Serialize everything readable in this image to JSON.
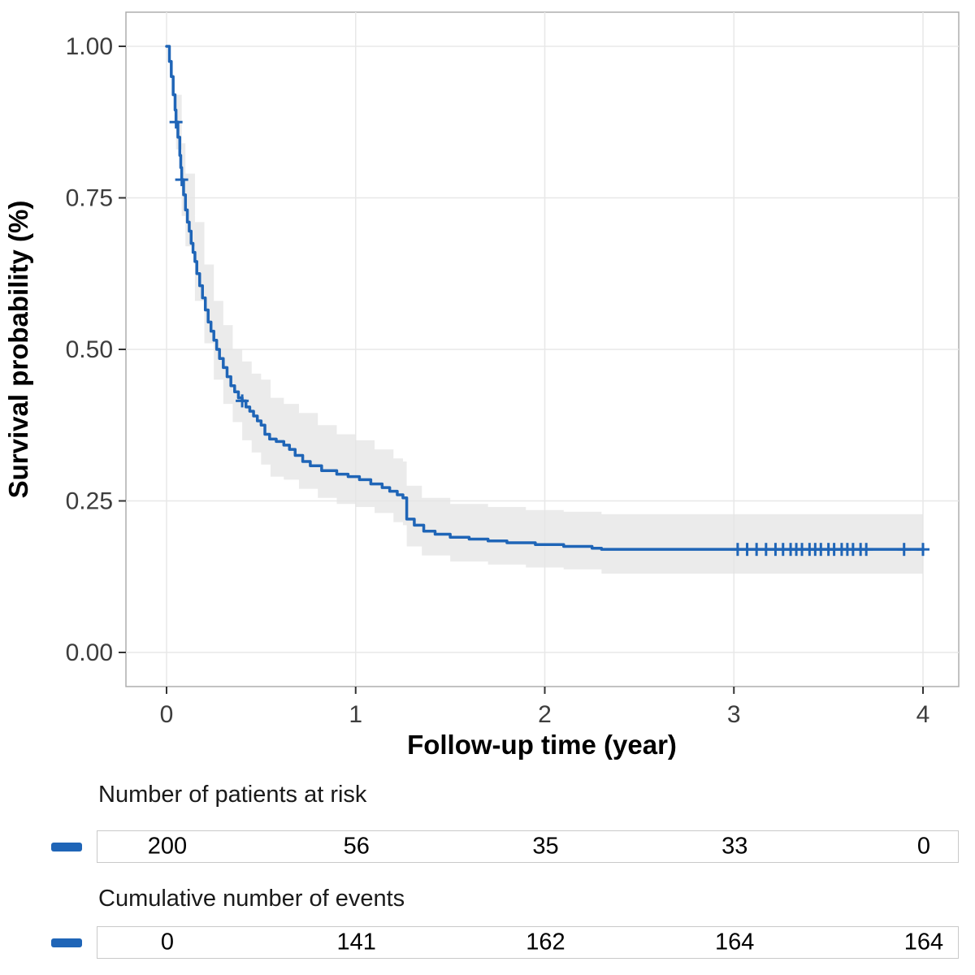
{
  "chart_data": {
    "type": "line",
    "subtype": "kaplan-meier-step",
    "title": "",
    "xlabel": "Follow-up time (year)",
    "ylabel": "Survival probability (%)",
    "xlim": [
      0,
      4
    ],
    "ylim": [
      0,
      1
    ],
    "grid": true,
    "x_ticks": [
      0,
      1,
      2,
      3,
      4
    ],
    "x_tick_labels": [
      "0",
      "1",
      "2",
      "3",
      "4"
    ],
    "y_ticks": [
      0,
      0.25,
      0.5,
      0.75,
      1
    ],
    "y_tick_labels": [
      "0.00",
      "0.25",
      "0.50",
      "0.75",
      "1.00"
    ],
    "line_color": "#1f65b7",
    "ci_color": "#e4e4e4",
    "curve": {
      "step": true,
      "points": [
        [
          0.0,
          1.0
        ],
        [
          0.015,
          0.975
        ],
        [
          0.025,
          0.95
        ],
        [
          0.035,
          0.92
        ],
        [
          0.045,
          0.895
        ],
        [
          0.05,
          0.875
        ],
        [
          0.06,
          0.85
        ],
        [
          0.07,
          0.82
        ],
        [
          0.075,
          0.8
        ],
        [
          0.08,
          0.78
        ],
        [
          0.09,
          0.755
        ],
        [
          0.1,
          0.73
        ],
        [
          0.11,
          0.71
        ],
        [
          0.12,
          0.695
        ],
        [
          0.13,
          0.675
        ],
        [
          0.14,
          0.66
        ],
        [
          0.15,
          0.645
        ],
        [
          0.16,
          0.625
        ],
        [
          0.175,
          0.605
        ],
        [
          0.19,
          0.585
        ],
        [
          0.205,
          0.565
        ],
        [
          0.22,
          0.545
        ],
        [
          0.235,
          0.53
        ],
        [
          0.25,
          0.515
        ],
        [
          0.265,
          0.5
        ],
        [
          0.28,
          0.485
        ],
        [
          0.3,
          0.47
        ],
        [
          0.32,
          0.455
        ],
        [
          0.34,
          0.44
        ],
        [
          0.36,
          0.43
        ],
        [
          0.38,
          0.42
        ],
        [
          0.4,
          0.415
        ],
        [
          0.42,
          0.405
        ],
        [
          0.44,
          0.398
        ],
        [
          0.46,
          0.39
        ],
        [
          0.48,
          0.382
        ],
        [
          0.5,
          0.375
        ],
        [
          0.52,
          0.36
        ],
        [
          0.545,
          0.352
        ],
        [
          0.58,
          0.348
        ],
        [
          0.62,
          0.342
        ],
        [
          0.65,
          0.335
        ],
        [
          0.68,
          0.325
        ],
        [
          0.72,
          0.315
        ],
        [
          0.76,
          0.308
        ],
        [
          0.82,
          0.3
        ],
        [
          0.9,
          0.294
        ],
        [
          0.96,
          0.29
        ],
        [
          1.02,
          0.285
        ],
        [
          1.08,
          0.278
        ],
        [
          1.14,
          0.272
        ],
        [
          1.18,
          0.266
        ],
        [
          1.22,
          0.26
        ],
        [
          1.25,
          0.255
        ],
        [
          1.27,
          0.22
        ],
        [
          1.31,
          0.21
        ],
        [
          1.36,
          0.2
        ],
        [
          1.42,
          0.195
        ],
        [
          1.5,
          0.19
        ],
        [
          1.6,
          0.187
        ],
        [
          1.7,
          0.184
        ],
        [
          1.8,
          0.181
        ],
        [
          1.95,
          0.178
        ],
        [
          2.1,
          0.175
        ],
        [
          2.25,
          0.172
        ],
        [
          2.3,
          0.17
        ],
        [
          4.0,
          0.17
        ]
      ]
    },
    "censor_marks": [
      [
        0.05,
        0.875
      ],
      [
        0.08,
        0.78
      ],
      [
        0.4,
        0.415
      ],
      [
        3.02,
        0.17
      ],
      [
        3.07,
        0.17
      ],
      [
        3.12,
        0.17
      ],
      [
        3.17,
        0.17
      ],
      [
        3.22,
        0.17
      ],
      [
        3.26,
        0.17
      ],
      [
        3.3,
        0.17
      ],
      [
        3.33,
        0.17
      ],
      [
        3.36,
        0.17
      ],
      [
        3.4,
        0.17
      ],
      [
        3.43,
        0.17
      ],
      [
        3.46,
        0.17
      ],
      [
        3.5,
        0.17
      ],
      [
        3.53,
        0.17
      ],
      [
        3.57,
        0.17
      ],
      [
        3.6,
        0.17
      ],
      [
        3.63,
        0.17
      ],
      [
        3.67,
        0.17
      ],
      [
        3.7,
        0.17
      ],
      [
        3.9,
        0.17
      ],
      [
        4.0,
        0.17
      ]
    ],
    "confidence_band": [
      [
        0.0,
        1.0,
        1.0
      ],
      [
        0.05,
        0.83,
        0.92
      ],
      [
        0.08,
        0.72,
        0.84
      ],
      [
        0.1,
        0.67,
        0.79
      ],
      [
        0.15,
        0.58,
        0.71
      ],
      [
        0.2,
        0.51,
        0.64
      ],
      [
        0.25,
        0.45,
        0.58
      ],
      [
        0.3,
        0.41,
        0.54
      ],
      [
        0.35,
        0.38,
        0.5
      ],
      [
        0.4,
        0.35,
        0.48
      ],
      [
        0.45,
        0.33,
        0.46
      ],
      [
        0.5,
        0.31,
        0.45
      ],
      [
        0.55,
        0.29,
        0.42
      ],
      [
        0.62,
        0.285,
        0.41
      ],
      [
        0.7,
        0.27,
        0.395
      ],
      [
        0.8,
        0.255,
        0.375
      ],
      [
        0.9,
        0.245,
        0.36
      ],
      [
        1.0,
        0.24,
        0.35
      ],
      [
        1.1,
        0.23,
        0.335
      ],
      [
        1.2,
        0.215,
        0.32
      ],
      [
        1.25,
        0.21,
        0.315
      ],
      [
        1.27,
        0.175,
        0.275
      ],
      [
        1.35,
        0.16,
        0.255
      ],
      [
        1.5,
        0.15,
        0.245
      ],
      [
        1.7,
        0.145,
        0.24
      ],
      [
        1.9,
        0.14,
        0.235
      ],
      [
        2.1,
        0.137,
        0.232
      ],
      [
        2.3,
        0.13,
        0.228
      ],
      [
        4.0,
        0.13,
        0.228
      ]
    ],
    "risk_table": {
      "title": "Number of patients at risk",
      "times": [
        0,
        1,
        2,
        3,
        4
      ],
      "values": [
        "200",
        "56",
        "35",
        "33",
        "0"
      ]
    },
    "events_table": {
      "title": "Cumulative number of events",
      "times": [
        0,
        1,
        2,
        3,
        4
      ],
      "values": [
        "0",
        "141",
        "162",
        "164",
        "164"
      ]
    }
  }
}
